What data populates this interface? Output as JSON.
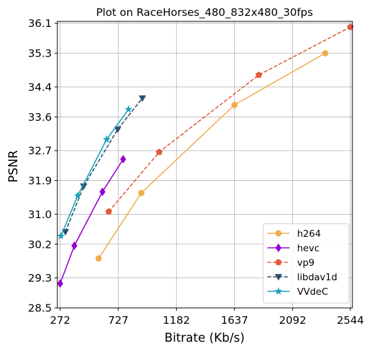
{
  "chart_data": {
    "type": "line",
    "title": "Plot on RaceHorses_480_832x480_30fps",
    "xlabel": "Bitrate (Kb/s)",
    "ylabel": "PSNR",
    "xlim": [
      250,
      2560
    ],
    "ylim": [
      28.5,
      36.15
    ],
    "xticks": [
      272,
      727,
      1182,
      1637,
      2092,
      2544
    ],
    "xtick_labels": [
      "272",
      "727",
      "1182",
      "1637",
      "2092",
      "2544"
    ],
    "yticks": [
      28.5,
      29.3,
      30.2,
      31.0,
      31.9,
      32.7,
      33.6,
      34.4,
      35.3,
      36.1
    ],
    "ytick_labels": [
      "28.5",
      "29.3",
      "30.2",
      "31.0",
      "31.9",
      "32.7",
      "33.6",
      "34.4",
      "35.3",
      "36.1"
    ],
    "grid": true,
    "legend_position": "lower-right",
    "series": [
      {
        "name": "h264",
        "color": "#f0ad4e",
        "dash": "solid",
        "marker": "circle",
        "x": [
          573,
          907,
          1637,
          2347
        ],
        "y": [
          29.82,
          31.57,
          33.92,
          35.3
        ]
      },
      {
        "name": "hevc",
        "color": "#9400d3",
        "dash": "solid",
        "marker": "diamond",
        "x": [
          272,
          383,
          603,
          765
        ],
        "y": [
          29.15,
          30.16,
          31.6,
          32.47
        ]
      },
      {
        "name": "vp9",
        "color": "#e05c3e",
        "dash": "dashed",
        "marker": "pentagon",
        "x": [
          652,
          1047,
          1827,
          2544
        ],
        "y": [
          31.07,
          32.66,
          34.72,
          36.0
        ]
      },
      {
        "name": "libdav1d",
        "color": "#2c4f6e",
        "dash": "dashed",
        "marker": "triangle-down",
        "x": [
          313,
          456,
          723,
          916
        ],
        "y": [
          30.53,
          31.75,
          33.27,
          34.1
        ]
      },
      {
        "name": "VVdeC",
        "color": "#17a2b8",
        "dash": "solid",
        "marker": "star",
        "x": [
          278,
          410,
          636,
          807
        ],
        "y": [
          30.42,
          31.5,
          33.0,
          33.8
        ]
      }
    ]
  }
}
